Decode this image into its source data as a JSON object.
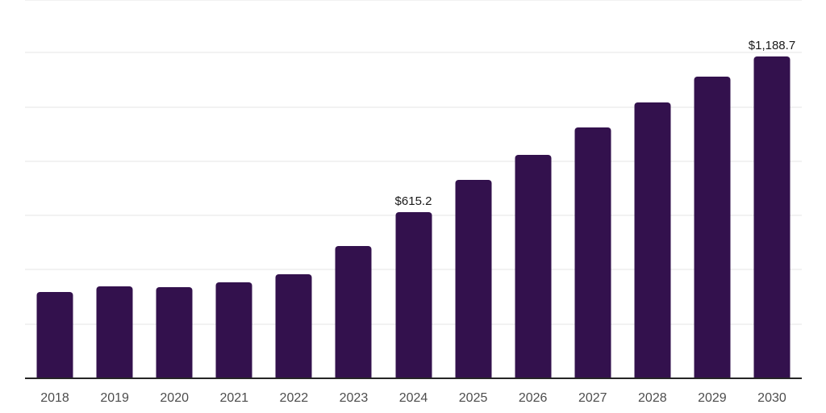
{
  "chart_data": {
    "type": "bar",
    "title": "",
    "xlabel": "",
    "ylabel": "",
    "categories": [
      "2018",
      "2019",
      "2020",
      "2021",
      "2022",
      "2023",
      "2024",
      "2025",
      "2026",
      "2027",
      "2028",
      "2029",
      "2030"
    ],
    "values": [
      321,
      342,
      339,
      357,
      386,
      490,
      615.2,
      734,
      826,
      927,
      1020,
      1114,
      1188.7
    ],
    "data_labels": [
      null,
      null,
      null,
      null,
      null,
      null,
      "$615.2",
      null,
      null,
      null,
      null,
      null,
      "$1,188.7"
    ],
    "ylim": [
      0,
      1400
    ],
    "gridline_step": 200,
    "grid": true,
    "legend": "none",
    "colors": {
      "bar": "#33114D",
      "axis_line": "#262626",
      "gridline": "#F2F2F2",
      "tick_label": "#4D4D4D",
      "data_label": "#1A1A1A",
      "background": "#FFFFFF"
    }
  }
}
